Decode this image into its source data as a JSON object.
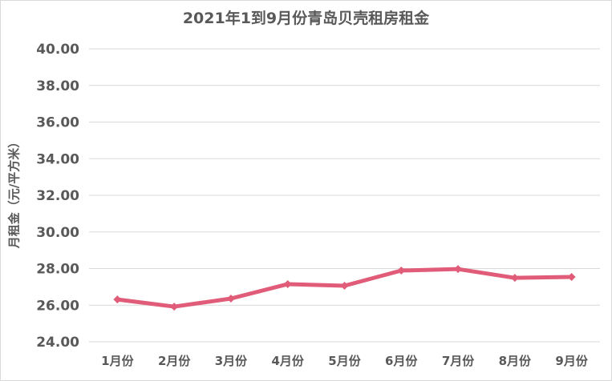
{
  "chart_data": {
    "type": "line",
    "title": "2021年1到9月份青岛贝壳租房租金",
    "xlabel": "",
    "ylabel": "月租金（元/平方米）",
    "categories": [
      "1月份",
      "2月份",
      "3月份",
      "4月份",
      "5月份",
      "6月份",
      "7月份",
      "8月份",
      "9月份"
    ],
    "series": [
      {
        "name": "月租金",
        "values": [
          26.31,
          25.92,
          26.36,
          27.15,
          27.06,
          27.89,
          27.97,
          27.49,
          27.54
        ],
        "color": "#e05c78"
      }
    ],
    "ylim": [
      24.0,
      40.0
    ],
    "yticks": [
      "24.00",
      "26.00",
      "28.00",
      "30.00",
      "32.00",
      "34.00",
      "36.00",
      "38.00",
      "40.00"
    ],
    "grid": true,
    "legend": "none",
    "marker": "diamond"
  },
  "colors": {
    "line": "#e05c78",
    "grid": "#d9d9d9",
    "text": "#595959"
  }
}
